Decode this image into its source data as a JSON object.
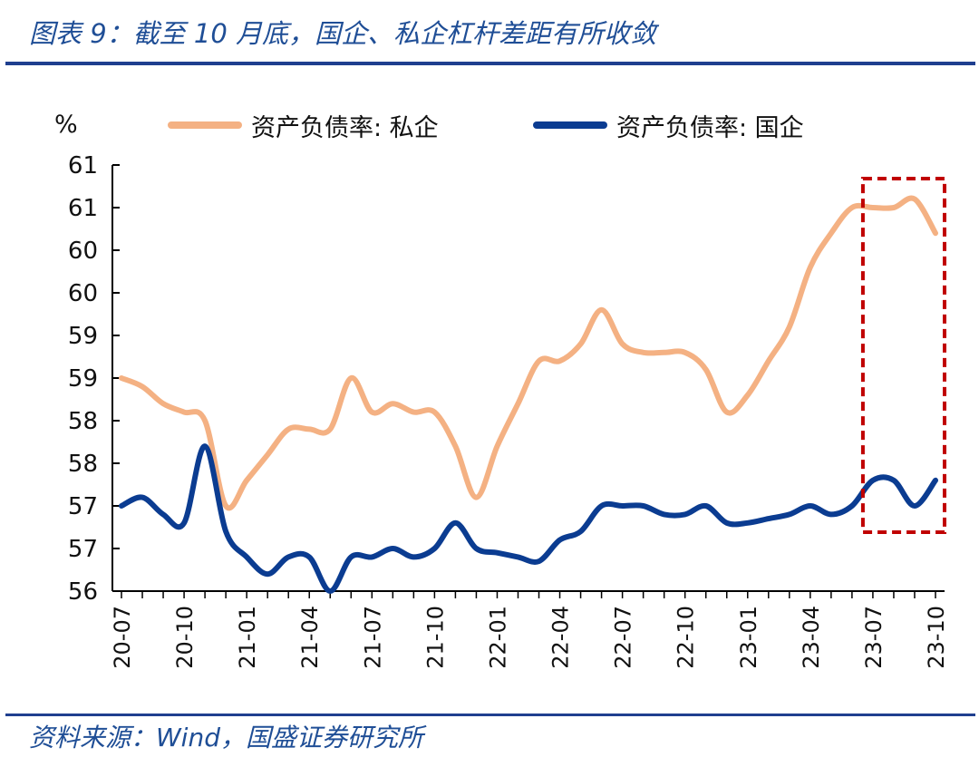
{
  "header": {
    "title": "图表 9：截至 10 月底，国企、私企杠杆差距有所收敛"
  },
  "footer": {
    "source": "资料来源：Wind，国盛证券研究所"
  },
  "chart_data": {
    "type": "line",
    "unit": "%",
    "x": [
      "2020-07",
      "2020-08",
      "2020-09",
      "2020-10",
      "2020-11",
      "2020-12",
      "2021-01",
      "2021-02",
      "2021-03",
      "2021-04",
      "2021-05",
      "2021-06",
      "2021-07",
      "2021-08",
      "2021-09",
      "2021-10",
      "2021-11",
      "2021-12",
      "2022-01",
      "2022-02",
      "2022-03",
      "2022-04",
      "2022-05",
      "2022-06",
      "2022-07",
      "2022-08",
      "2022-09",
      "2022-10",
      "2022-11",
      "2022-12",
      "2023-01",
      "2023-02",
      "2023-03",
      "2023-04",
      "2023-05",
      "2023-06",
      "2023-07",
      "2023-08",
      "2023-09",
      "2023-10"
    ],
    "x_tick_labels": [
      "20-07",
      "20-10",
      "21-01",
      "21-04",
      "21-07",
      "21-10",
      "22-01",
      "22-04",
      "22-07",
      "22-10",
      "23-01",
      "23-04",
      "23-07",
      "23-10"
    ],
    "y_tick_labels": [
      "61",
      "61",
      "60",
      "60",
      "59",
      "59",
      "58",
      "58",
      "57",
      "57",
      "56"
    ],
    "ylim": [
      56.5,
      61.5
    ],
    "series": [
      {
        "name": "资产负债率: 私企",
        "color": "#f4b183",
        "values": [
          59.0,
          58.9,
          58.7,
          58.6,
          58.5,
          57.5,
          57.8,
          58.1,
          58.4,
          58.4,
          58.4,
          59.0,
          58.6,
          58.7,
          58.6,
          58.6,
          58.2,
          57.6,
          58.2,
          58.7,
          59.2,
          59.2,
          59.4,
          59.8,
          59.4,
          59.3,
          59.3,
          59.3,
          59.1,
          58.6,
          58.8,
          59.2,
          59.6,
          60.3,
          60.7,
          61.0,
          61.0,
          61.0,
          61.1,
          60.7
        ]
      },
      {
        "name": "资产负债率: 国企",
        "color": "#0b3c91",
        "values": [
          57.5,
          57.6,
          57.4,
          57.3,
          58.2,
          57.2,
          56.9,
          56.7,
          56.9,
          56.9,
          56.5,
          56.9,
          56.9,
          57.0,
          56.9,
          57.0,
          57.3,
          57.0,
          56.95,
          56.9,
          56.85,
          57.1,
          57.2,
          57.5,
          57.5,
          57.5,
          57.4,
          57.4,
          57.5,
          57.3,
          57.3,
          57.35,
          57.4,
          57.5,
          57.4,
          57.5,
          57.8,
          57.8,
          57.5,
          57.8
        ]
      }
    ],
    "highlight": {
      "from": "2023-07",
      "to": "2023-10",
      "color": "#c00000",
      "style": "dashed"
    }
  }
}
